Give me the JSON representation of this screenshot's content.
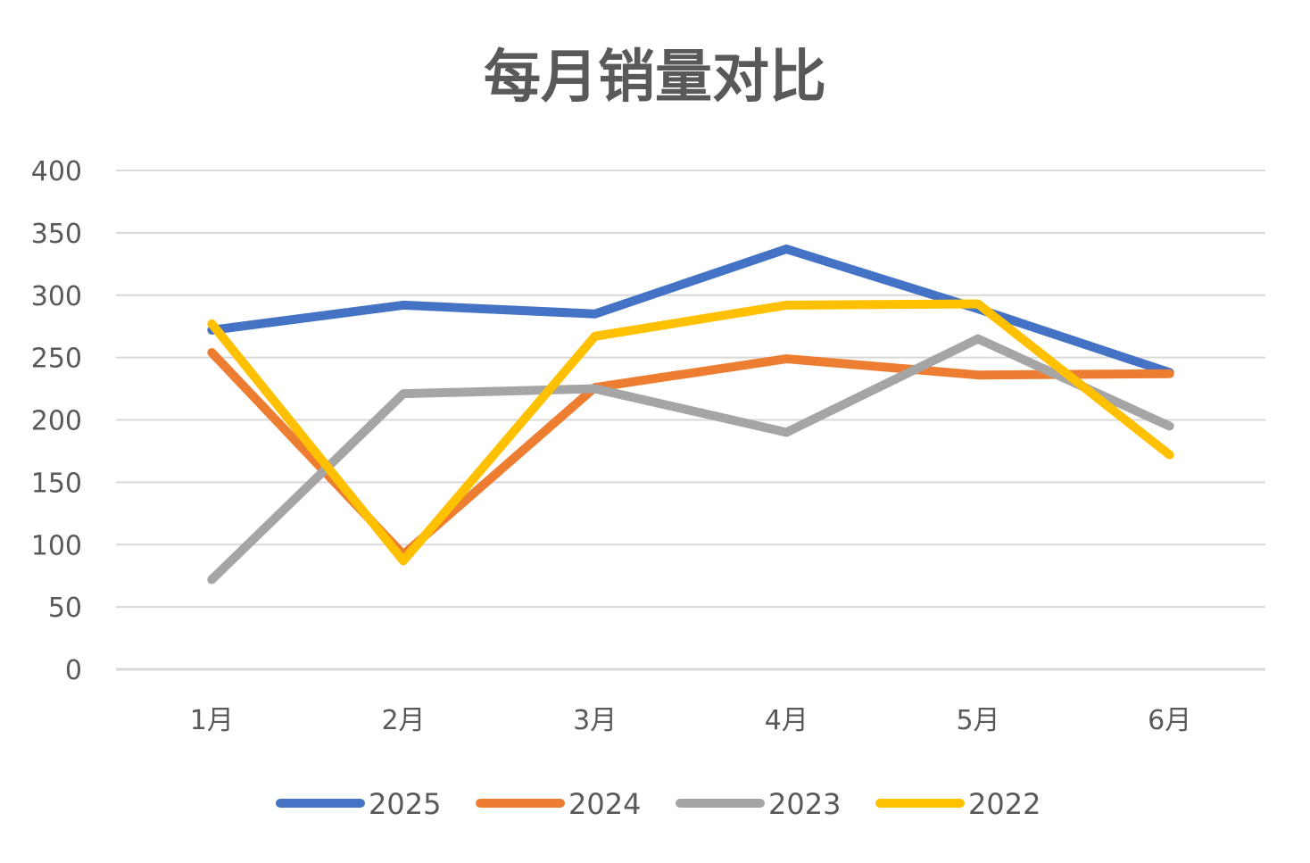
{
  "chart_data": {
    "type": "line",
    "title": "每月销量对比",
    "xlabel": "",
    "ylabel": "",
    "categories": [
      "1月",
      "2月",
      "3月",
      "4月",
      "5月",
      "6月"
    ],
    "ylim": [
      0,
      400
    ],
    "yticks": [
      0,
      50,
      100,
      150,
      200,
      250,
      300,
      350,
      400
    ],
    "grid": true,
    "legend_position": "bottom",
    "series": [
      {
        "name": "2025",
        "color": "#4472C4",
        "values": [
          272,
          292,
          285,
          337,
          289,
          238
        ]
      },
      {
        "name": "2024",
        "color": "#ED7D31",
        "values": [
          254,
          92,
          226,
          249,
          236,
          237
        ]
      },
      {
        "name": "2023",
        "color": "#A5A5A5",
        "values": [
          72,
          221,
          225,
          190,
          265,
          195
        ]
      },
      {
        "name": "2022",
        "color": "#FFC000",
        "values": [
          277,
          87,
          267,
          292,
          293,
          172
        ]
      }
    ]
  }
}
